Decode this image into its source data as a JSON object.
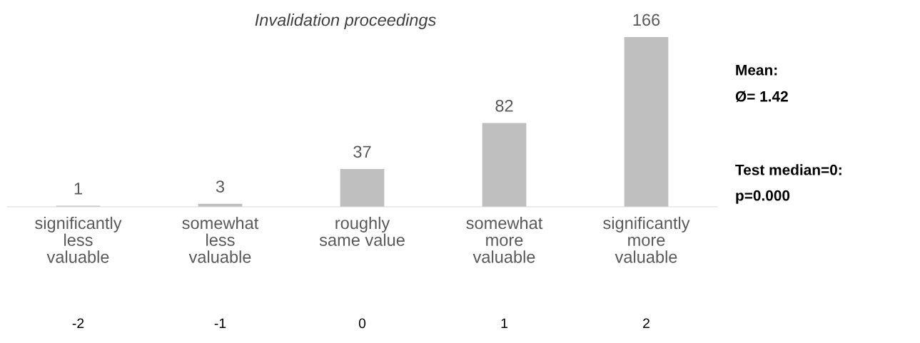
{
  "chart_data": {
    "type": "bar",
    "title": "Invalidation proceedings",
    "categories": [
      "significantly\nless\nvaluable",
      "somewhat\nless\nvaluable",
      "roughly\nsame value",
      "somewhat\nmore\nvaluable",
      "significantly\nmore\nvaluable"
    ],
    "values": [
      1,
      3,
      37,
      82,
      166
    ],
    "color": "#bfbfbf",
    "data_labels": true,
    "grid": false,
    "legend": false,
    "annotations": [
      "-2",
      "-1",
      "0",
      "1",
      "2",
      "Mean:",
      "Ø= 1.42",
      "Test median=0:",
      "p=0.000"
    ]
  }
}
